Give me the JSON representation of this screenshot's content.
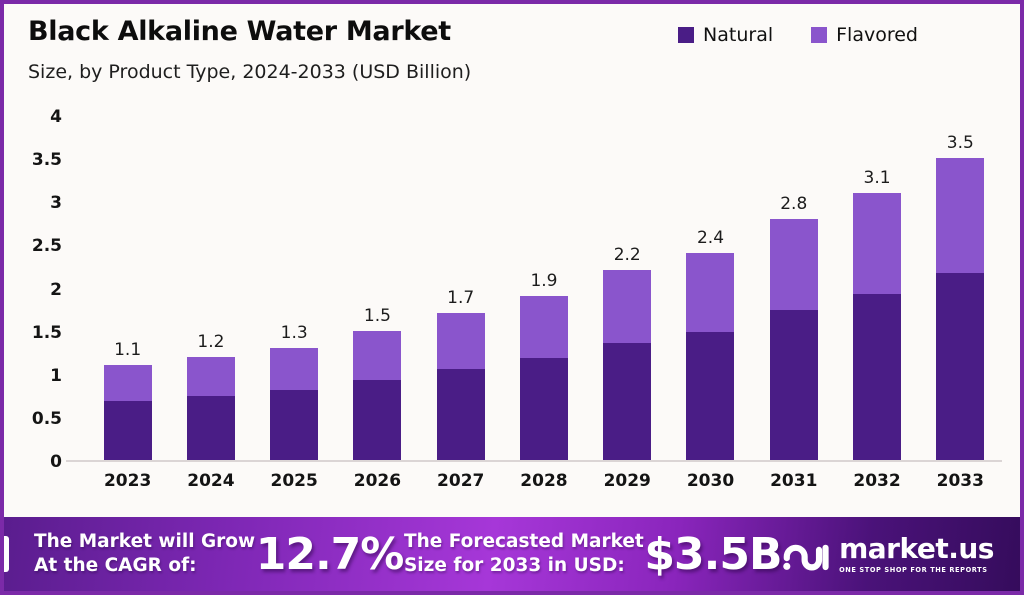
{
  "header": {
    "title": "Black Alkaline Water Market",
    "subtitle": "Size, by Product Type, 2024-2033 (USD Billion)"
  },
  "legend": [
    {
      "label": "Natural",
      "color": "#4A1D86"
    },
    {
      "label": "Flavored",
      "color": "#8A55CC"
    }
  ],
  "chart_data": {
    "type": "bar",
    "stacked": true,
    "title": "Black Alkaline Water Market Size, by Product Type, 2024-2033 (USD Billion)",
    "categories": [
      "2023",
      "2024",
      "2025",
      "2026",
      "2027",
      "2028",
      "2029",
      "2030",
      "2031",
      "2032",
      "2033"
    ],
    "series": [
      {
        "name": "Natural",
        "color": "#4A1D86",
        "values": [
          0.68,
          0.74,
          0.81,
          0.93,
          1.05,
          1.18,
          1.36,
          1.49,
          1.74,
          1.92,
          2.17
        ]
      },
      {
        "name": "Flavored",
        "color": "#8A55CC",
        "values": [
          0.42,
          0.46,
          0.49,
          0.57,
          0.65,
          0.72,
          0.84,
          0.91,
          1.06,
          1.18,
          1.33
        ]
      }
    ],
    "totals": [
      1.1,
      1.2,
      1.3,
      1.5,
      1.7,
      1.9,
      2.2,
      2.4,
      2.8,
      3.1,
      3.5
    ],
    "yticks": [
      0,
      0.5,
      1,
      1.5,
      2,
      2.5,
      3,
      3.5,
      4
    ],
    "ytick_labels": [
      "0",
      "0.5",
      "1",
      "1.5",
      "2",
      "2.5",
      "3",
      "3.5",
      "4"
    ],
    "ylim": [
      0,
      4
    ],
    "xlabel": "",
    "ylabel": "",
    "grid": false,
    "legend_position": "top-right"
  },
  "banner": {
    "cagr_label_line1": "The Market will Grow",
    "cagr_label_line2": "At the CAGR of:",
    "cagr_value": "12.7%",
    "forecast_label_line1": "The Forecasted Market",
    "forecast_label_line2": "Size for 2033 in USD:",
    "forecast_value": "$3.5B",
    "brand": {
      "name": "market.us",
      "tagline": "ONE STOP SHOP FOR THE REPORTS"
    }
  },
  "colors": {
    "frame_border": "#7B2AA8",
    "background": "#FCFAF8",
    "natural": "#4A1D86",
    "flavored": "#8A55CC",
    "axis_line": "#DBD5D5",
    "banner_gradient": [
      "#5A1D8E",
      "#A637D8",
      "#350C5C"
    ]
  }
}
